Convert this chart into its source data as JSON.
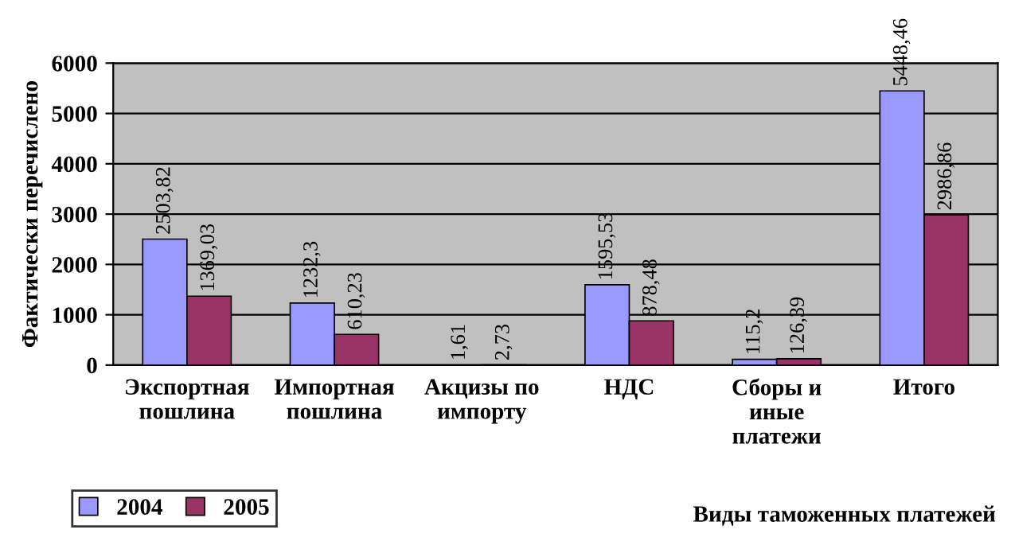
{
  "chart_data": {
    "type": "bar",
    "ylabel": "Фактически перечислено",
    "xlabel": "Виды таможенных платежей",
    "categories": [
      "Экспортная\nпошлина",
      "Импортная\nпошлина",
      "Акцизы по\nимпорту",
      "НДС",
      "Сборы и\nиные\nплатежи",
      "Итого"
    ],
    "series": [
      {
        "name": "2004",
        "color": "#9999ff",
        "values": [
          2503.82,
          1232.3,
          1.61,
          1595.53,
          115.2,
          5448.46
        ],
        "value_labels": [
          "2503,82",
          "1232,3",
          "1,61",
          "1595,53",
          "115,2",
          "5448,46"
        ]
      },
      {
        "name": "2005",
        "color": "#993366",
        "values": [
          1369.03,
          610.23,
          2.73,
          878.48,
          126.39,
          2986.86
        ],
        "value_labels": [
          "1369,03",
          "610,23",
          "2,73",
          "878,48",
          "126,39",
          "2986,86"
        ]
      }
    ],
    "ylim": [
      0,
      6000
    ],
    "yticks": [
      0,
      1000,
      2000,
      3000,
      4000,
      5000,
      6000
    ],
    "grid": "y",
    "legend": "bottom left"
  }
}
